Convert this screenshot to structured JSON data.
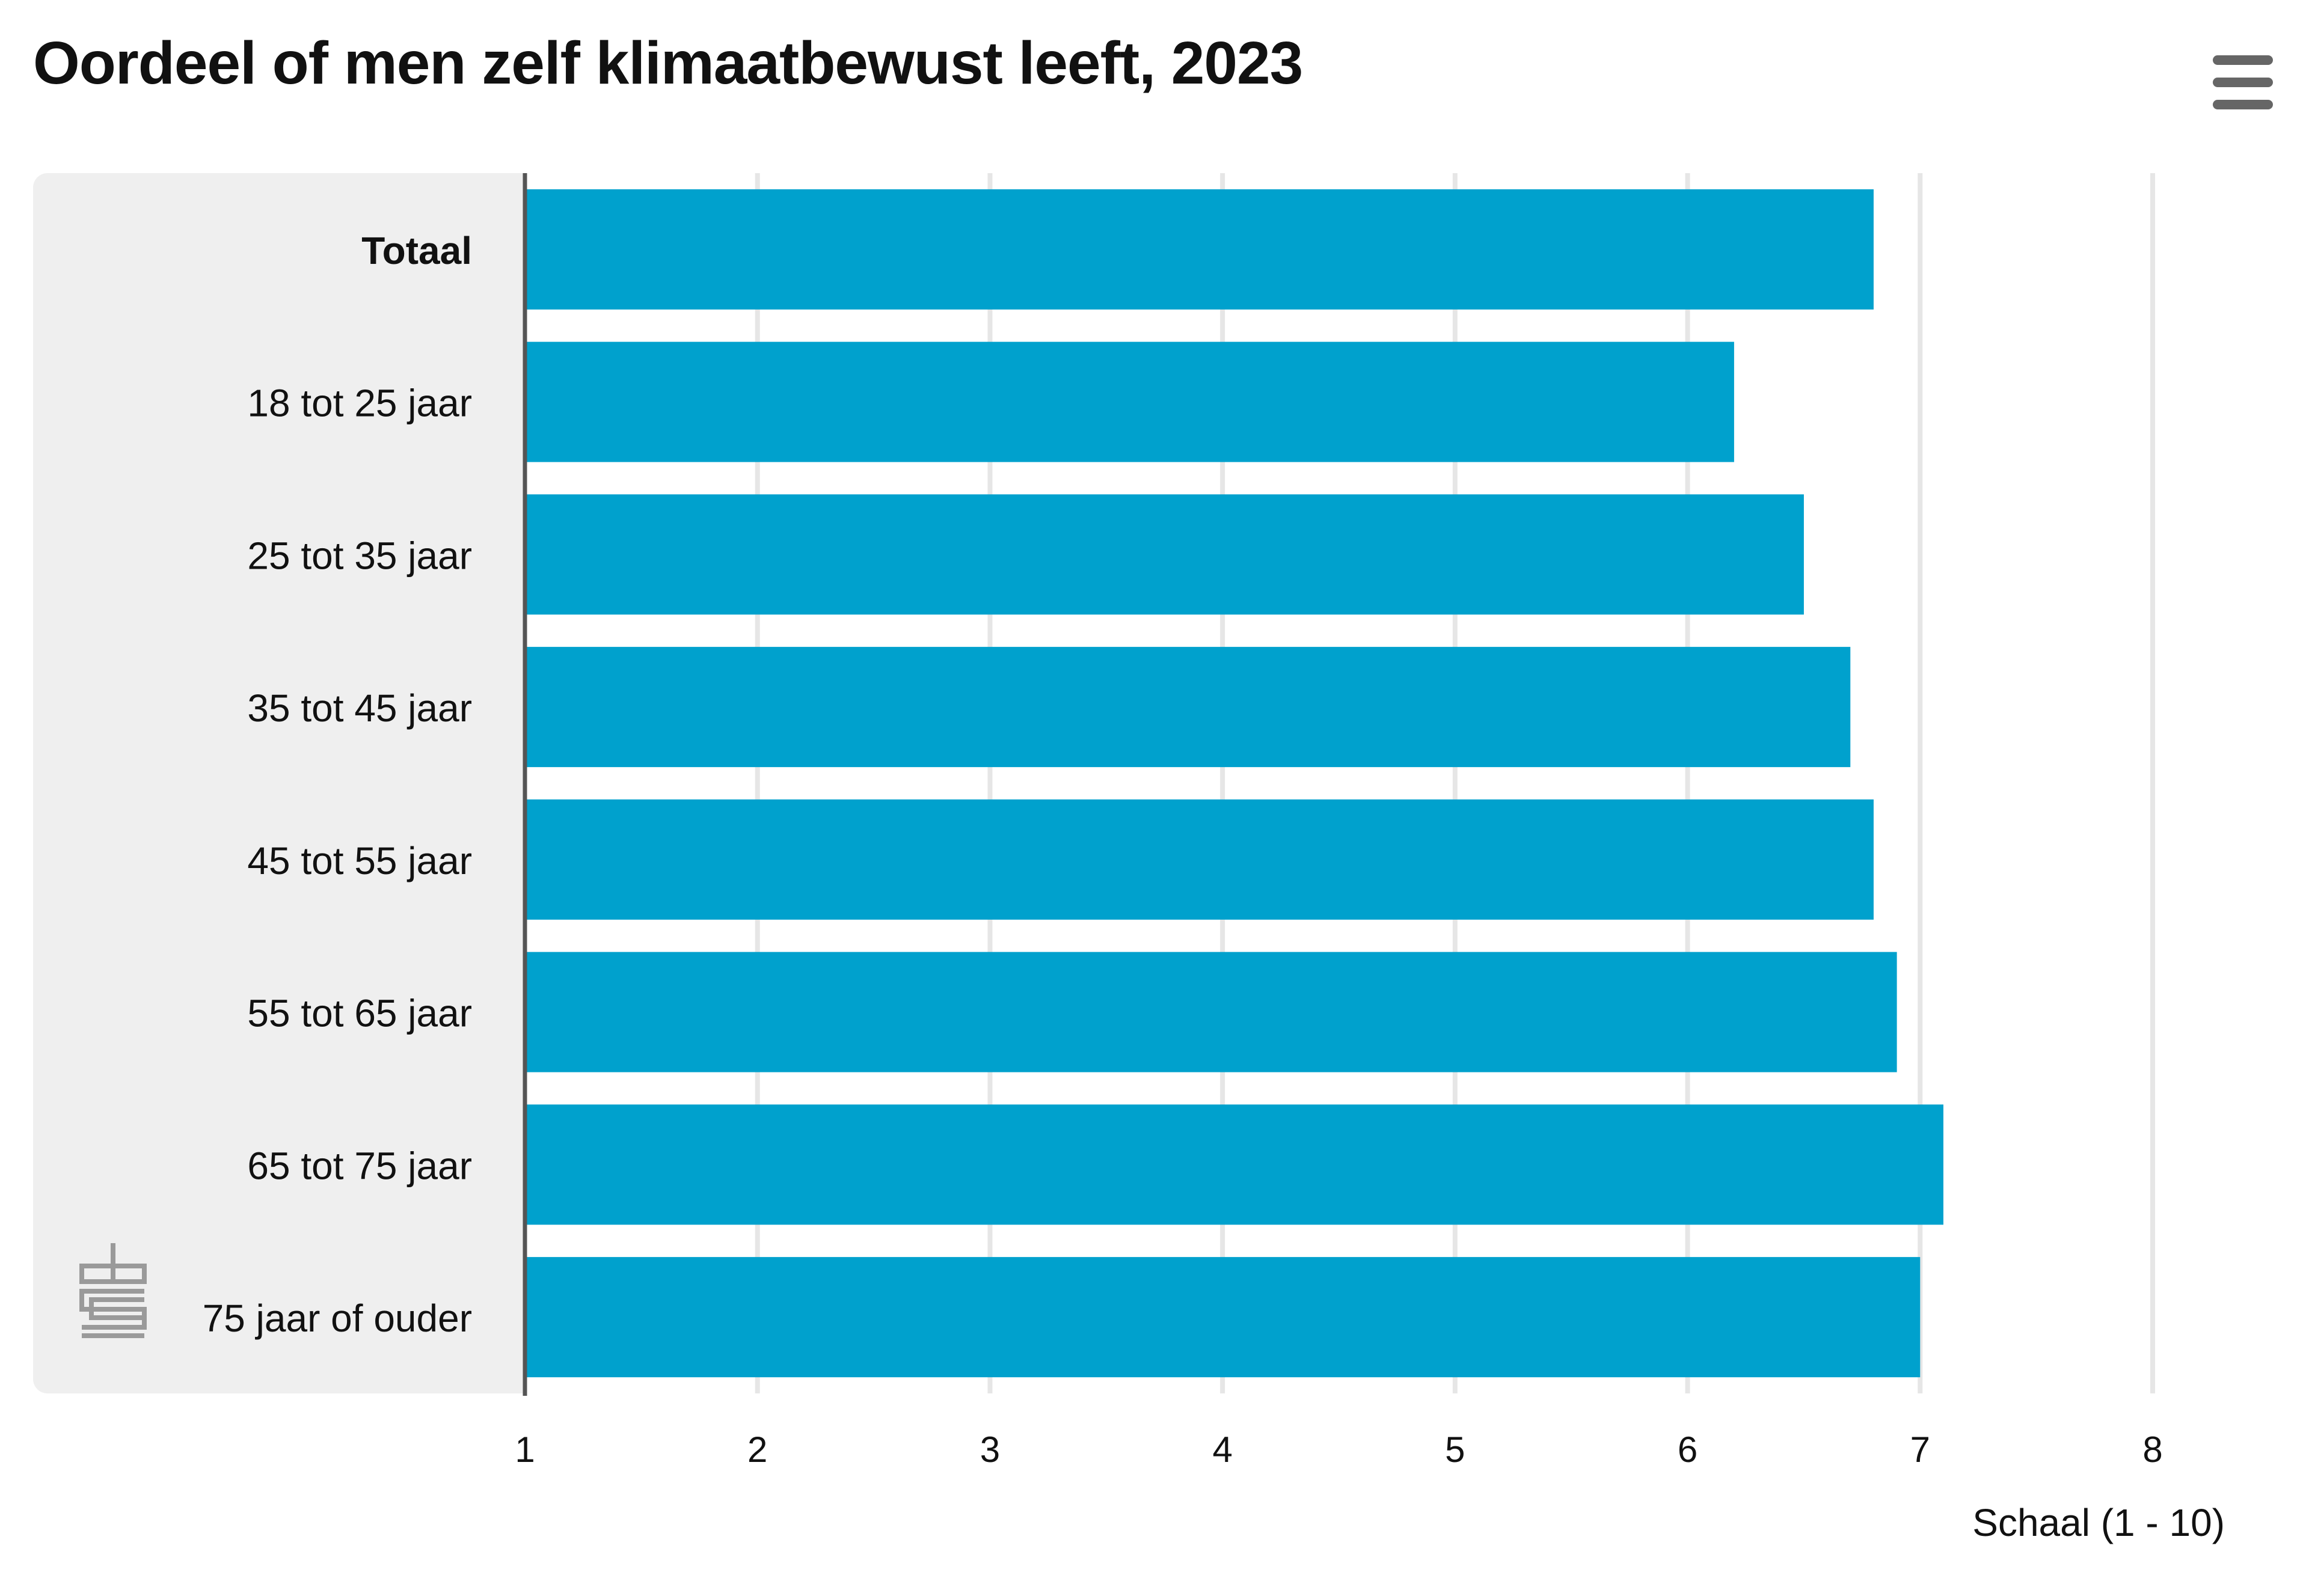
{
  "chart_title": "Oordeel of men zelf klimaatbewust leeft, 2023",
  "menu_icon": "hamburger-menu-icon",
  "logo_icon": "cbs-logo-icon",
  "colors": {
    "bar": "#00a1cd",
    "label_panel": "#efefef",
    "grid": "#e6e6e6",
    "axis": "#555555"
  },
  "chart_data": {
    "type": "bar",
    "orientation": "horizontal",
    "title": "Oordeel of men zelf klimaatbewust leeft, 2023",
    "xlabel": "Schaal (1 - 10)",
    "ylabel": "",
    "categories": [
      "Totaal",
      "18 tot 25 jaar",
      "25 tot 35 jaar",
      "35 tot 45 jaar",
      "45 tot 55 jaar",
      "55 tot 65 jaar",
      "65 tot 75 jaar",
      "75 jaar of ouder"
    ],
    "bold_categories": [
      "Totaal"
    ],
    "values": [
      6.8,
      6.2,
      6.5,
      6.7,
      6.8,
      6.9,
      7.1,
      7.0
    ],
    "xlim": [
      1,
      8
    ],
    "xticks": [
      1,
      2,
      3,
      4,
      5,
      6,
      7,
      8
    ],
    "grid": true,
    "legend": "none"
  }
}
